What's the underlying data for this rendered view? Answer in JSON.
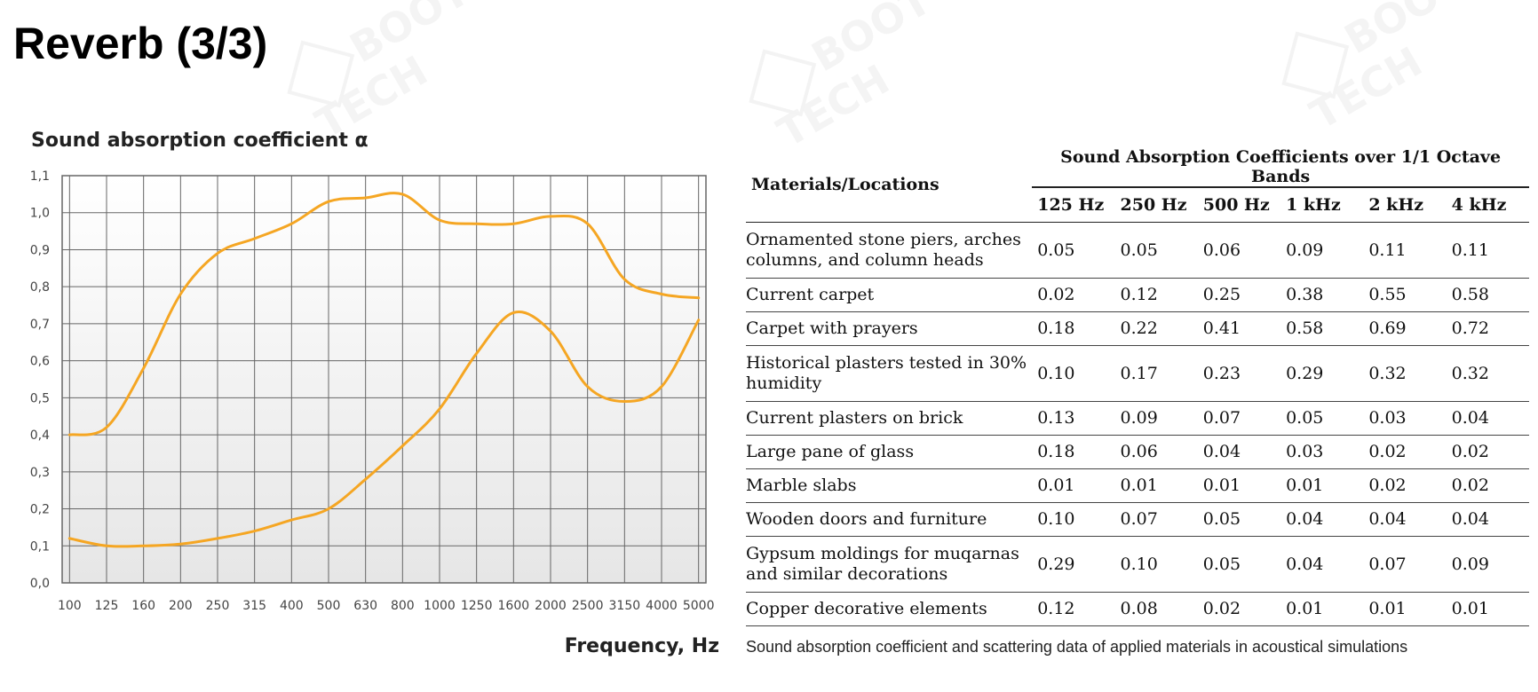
{
  "page": {
    "title": "Reverb (3/3)"
  },
  "colors": {
    "curve": "#f5a623",
    "grid": "#666666",
    "plot_bg_top": "#ffffff",
    "plot_bg_bottom": "#e6e6e6"
  },
  "chart_data": {
    "type": "line",
    "title": "Sound absorption coefficient α",
    "xlabel": "Frequency, Hz",
    "ylabel": "",
    "categories": [
      "100",
      "125",
      "160",
      "200",
      "250",
      "315",
      "400",
      "500",
      "630",
      "800",
      "1000",
      "1250",
      "1600",
      "2000",
      "2500",
      "3150",
      "4000",
      "5000"
    ],
    "ylim": [
      0.0,
      1.1
    ],
    "yticks": [
      "0,0",
      "0,1",
      "0,2",
      "0,3",
      "0,4",
      "0,5",
      "0,6",
      "0,7",
      "0,8",
      "0,9",
      "1,0",
      "1,1"
    ],
    "grid": true,
    "series": [
      {
        "values": [
          0.4,
          0.42,
          0.58,
          0.78,
          0.89,
          0.93,
          0.97,
          1.03,
          1.04,
          1.05,
          0.98,
          0.97,
          0.97,
          0.99,
          0.97,
          0.82,
          0.78,
          0.77
        ]
      },
      {
        "values": [
          0.12,
          0.1,
          0.1,
          0.105,
          0.12,
          0.14,
          0.17,
          0.2,
          0.28,
          0.37,
          0.47,
          0.62,
          0.73,
          0.68,
          0.53,
          0.49,
          0.53,
          0.71
        ]
      }
    ]
  },
  "table": {
    "header_materials": "Materials/Locations",
    "header_group": "Sound Absorption Coefficients over 1/1 Octave Bands",
    "bands": [
      "125 Hz",
      "250 Hz",
      "500 Hz",
      "1 kHz",
      "2 kHz",
      "4 kHz"
    ],
    "rows": [
      {
        "lines": [
          "Ornamented stone piers, arches",
          "columns, and column heads"
        ],
        "values": [
          "0.05",
          "0.05",
          "0.06",
          "0.09",
          "0.11",
          "0.11"
        ]
      },
      {
        "lines": [
          "Current carpet"
        ],
        "values": [
          "0.02",
          "0.12",
          "0.25",
          "0.38",
          "0.55",
          "0.58"
        ]
      },
      {
        "lines": [
          "Carpet with prayers"
        ],
        "values": [
          "0.18",
          "0.22",
          "0.41",
          "0.58",
          "0.69",
          "0.72"
        ]
      },
      {
        "lines": [
          "Historical plasters tested in 30%",
          "humidity"
        ],
        "values": [
          "0.10",
          "0.17",
          "0.23",
          "0.29",
          "0.32",
          "0.32"
        ]
      },
      {
        "lines": [
          "Current plasters on brick"
        ],
        "values": [
          "0.13",
          "0.09",
          "0.07",
          "0.05",
          "0.03",
          "0.04"
        ]
      },
      {
        "lines": [
          "Large pane of glass"
        ],
        "values": [
          "0.18",
          "0.06",
          "0.04",
          "0.03",
          "0.02",
          "0.02"
        ]
      },
      {
        "lines": [
          "Marble slabs"
        ],
        "values": [
          "0.01",
          "0.01",
          "0.01",
          "0.01",
          "0.02",
          "0.02"
        ]
      },
      {
        "lines": [
          "Wooden doors and furniture"
        ],
        "values": [
          "0.10",
          "0.07",
          "0.05",
          "0.04",
          "0.04",
          "0.04"
        ]
      },
      {
        "lines": [
          "Gypsum moldings for muqarnas",
          "and similar decorations"
        ],
        "values": [
          "0.29",
          "0.10",
          "0.05",
          "0.04",
          "0.07",
          "0.09"
        ]
      },
      {
        "lines": [
          "Copper decorative elements"
        ],
        "values": [
          "0.12",
          "0.08",
          "0.02",
          "0.01",
          "0.01",
          "0.01"
        ]
      }
    ],
    "caption": "Sound absorption coefficient and scattering data of applied materials in acoustical simulations"
  }
}
